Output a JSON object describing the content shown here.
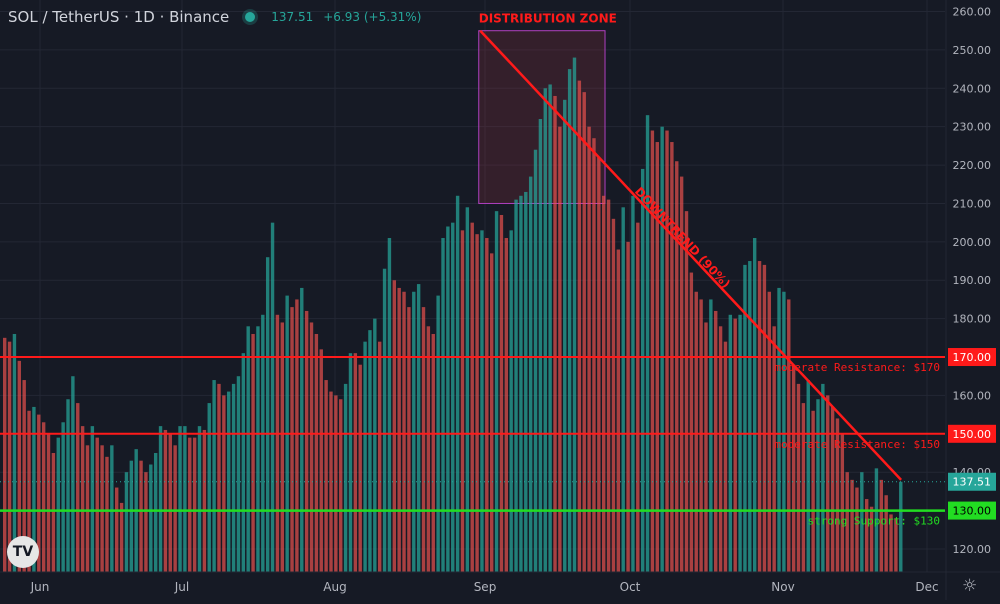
{
  "header": {
    "symbol": "SOL / TetherUS · 1D · Binance",
    "last_price": "137.51",
    "change": "+6.93 (+5.31%)"
  },
  "logo_text": "TV",
  "settings_icon": "gear-icon",
  "colors": {
    "background": "#161a25",
    "grid": "#232734",
    "up": "#26a69a",
    "down": "#ef5350",
    "resistance": "#ff1a1a",
    "support": "#22dd22",
    "zone_border": "#b040c0",
    "axis_text": "#b2b5be"
  },
  "chart_data": {
    "type": "bar",
    "title": "SOL / TetherUS · 1D · Binance",
    "x_labels": [
      "Jun",
      "Jul",
      "Aug",
      "Sep",
      "Oct",
      "Nov",
      "Dec"
    ],
    "y_ticks": [
      120,
      130,
      140,
      150,
      160,
      170,
      180,
      190,
      200,
      210,
      220,
      230,
      240,
      250,
      260
    ],
    "ylim": [
      114,
      263
    ],
    "grid": true,
    "series": [
      {
        "values": [
          175,
          174,
          176,
          169,
          164,
          156,
          157,
          155,
          153,
          150,
          145,
          149,
          153,
          159,
          165,
          158,
          152,
          147,
          152,
          149,
          147,
          144,
          147,
          136,
          132,
          140,
          143,
          146,
          143,
          140,
          142,
          145,
          152,
          151,
          150,
          147,
          152,
          152,
          149,
          149,
          152,
          151,
          158,
          164,
          163,
          160,
          161,
          163,
          165,
          171,
          178,
          176,
          178,
          181,
          196,
          205,
          181,
          179,
          186,
          183,
          185,
          188,
          182,
          179,
          176,
          172,
          164,
          161,
          160,
          159,
          163,
          171,
          171,
          168,
          174,
          177,
          180,
          174,
          193,
          201,
          190,
          188,
          187,
          183,
          187,
          189,
          183,
          178,
          176,
          186,
          201,
          204,
          205,
          212,
          203,
          209,
          205,
          202,
          203,
          201,
          197,
          208,
          207,
          201,
          203,
          211,
          212,
          213,
          217,
          224,
          232,
          240,
          241,
          238,
          230,
          237,
          245,
          248,
          242,
          239,
          230,
          227,
          222,
          212,
          211,
          206,
          198,
          209,
          200,
          212,
          205,
          219,
          233,
          229,
          226,
          230,
          229,
          226,
          221,
          217,
          208,
          192,
          187,
          185,
          179,
          185,
          182,
          178,
          174,
          181,
          180,
          181,
          194,
          195,
          201,
          195,
          194,
          187,
          178,
          188,
          187,
          185,
          168,
          163,
          158,
          164,
          156,
          159,
          163,
          160,
          157,
          154,
          150,
          140,
          138,
          136,
          140,
          133,
          131,
          141,
          138,
          134,
          129,
          128,
          137.5
        ],
        "colors": [
          "down",
          "down",
          "up",
          "down",
          "down",
          "down",
          "up",
          "down",
          "down",
          "down",
          "down",
          "up",
          "up",
          "up",
          "up",
          "down",
          "down",
          "down",
          "up",
          "down",
          "down",
          "down",
          "up",
          "down",
          "down",
          "up",
          "up",
          "up",
          "down",
          "down",
          "up",
          "up",
          "up",
          "down",
          "down",
          "down",
          "up",
          "up",
          "down",
          "down",
          "up",
          "down",
          "up",
          "up",
          "down",
          "down",
          "up",
          "up",
          "up",
          "up",
          "up",
          "down",
          "up",
          "up",
          "up",
          "up",
          "down",
          "down",
          "up",
          "down",
          "down",
          "up",
          "down",
          "down",
          "down",
          "down",
          "down",
          "down",
          "down",
          "down",
          "up",
          "up",
          "down",
          "down",
          "up",
          "up",
          "up",
          "down",
          "up",
          "up",
          "down",
          "down",
          "down",
          "down",
          "up",
          "up",
          "down",
          "down",
          "down",
          "up",
          "up",
          "up",
          "up",
          "up",
          "down",
          "up",
          "down",
          "down",
          "up",
          "down",
          "down",
          "up",
          "down",
          "down",
          "up",
          "up",
          "up",
          "up",
          "up",
          "up",
          "up",
          "up",
          "up",
          "down",
          "down",
          "up",
          "up",
          "up",
          "down",
          "down",
          "down",
          "down",
          "down",
          "down",
          "down",
          "down",
          "down",
          "up",
          "down",
          "up",
          "down",
          "up",
          "up",
          "down",
          "down",
          "up",
          "down",
          "down",
          "down",
          "down",
          "down",
          "down",
          "down",
          "down",
          "down",
          "up",
          "down",
          "down",
          "down",
          "up",
          "down",
          "up",
          "up",
          "up",
          "up",
          "down",
          "down",
          "down",
          "down",
          "up",
          "up",
          "down",
          "down",
          "down",
          "down",
          "up",
          "down",
          "up",
          "up",
          "down",
          "down",
          "down",
          "down",
          "down",
          "down",
          "down",
          "up",
          "down",
          "down",
          "up",
          "down",
          "down",
          "down",
          "down",
          "up"
        ]
      }
    ],
    "horizontal_lines": [
      {
        "price": 170,
        "axis_label": "170.00",
        "label": "moderate Resistance: $170",
        "role": "resistance"
      },
      {
        "price": 150,
        "axis_label": "150.00",
        "label": "moderate Resistance: $150",
        "role": "resistance"
      },
      {
        "price": 130,
        "axis_label": "130.00",
        "label": "strong Support: $130",
        "role": "support"
      }
    ],
    "last_price_label": "137.51",
    "last_price": 137.51,
    "zone": {
      "label": "DISTRIBUTION ZONE",
      "price_top": 255,
      "price_bottom": 210,
      "start_bar": 98,
      "end_bar": 123
    },
    "trendline": {
      "label": "DOWNTREND (90%)",
      "start_bar": 98,
      "start_price": 255,
      "end_bar": 184,
      "end_price": 138
    }
  }
}
